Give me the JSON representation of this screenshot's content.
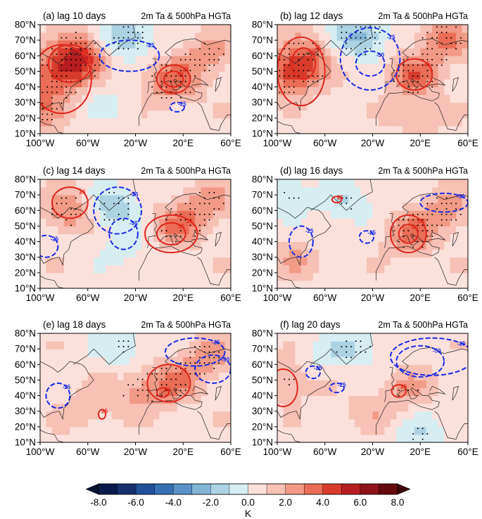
{
  "chart_data": {
    "type": "contour-map",
    "figure_subtitle": "2m Ta & 500hPa HGTa",
    "panels": [
      {
        "label": "(a) lag 10 days",
        "subtitle": "2m Ta & 500hPa HGTa",
        "blobs_k": [
          [
            -88,
            45,
            2.5
          ],
          [
            -75,
            55,
            3.5
          ],
          [
            -60,
            65,
            2.5
          ],
          [
            10,
            43,
            3
          ],
          [
            -30,
            72,
            -3
          ],
          [
            -100,
            25,
            2
          ],
          [
            40,
            60,
            2
          ],
          [
            -40,
            30,
            -0.8
          ]
        ],
        "contours": [
          {
            "sign": "pos",
            "label": "50",
            "cx": -75,
            "cy": 55,
            "rx": 18,
            "ry": 12
          },
          {
            "sign": "pos",
            "label": "25",
            "cx": -82,
            "cy": 45,
            "rx": 25,
            "ry": 22
          },
          {
            "sign": "pos",
            "label": "25",
            "cx": 12,
            "cy": 45,
            "rx": 14,
            "ry": 9
          },
          {
            "sign": "pos",
            "label": "50",
            "cx": 12,
            "cy": 45,
            "rx": 8,
            "ry": 5
          },
          {
            "sign": "neg",
            "label": "-25",
            "cx": -25,
            "cy": 60,
            "rx": 25,
            "ry": 10
          },
          {
            "sign": "neg",
            "label": "-25",
            "cx": 15,
            "cy": 27,
            "rx": 6,
            "ry": 3
          }
        ]
      },
      {
        "label": "(b) lag 12 days",
        "subtitle": "2m Ta & 500hPa HGTa",
        "blobs_k": [
          [
            -88,
            48,
            3.5
          ],
          [
            -75,
            60,
            2.5
          ],
          [
            15,
            48,
            3
          ],
          [
            -30,
            72,
            -3
          ],
          [
            40,
            70,
            2.5
          ],
          [
            20,
            20,
            1
          ]
        ],
        "contours": [
          {
            "sign": "pos",
            "label": "25",
            "cx": -80,
            "cy": 50,
            "rx": 20,
            "ry": 22
          },
          {
            "sign": "pos",
            "label": "50",
            "cx": -78,
            "cy": 55,
            "rx": 10,
            "ry": 10
          },
          {
            "sign": "pos",
            "label": "25",
            "cx": 15,
            "cy": 48,
            "rx": 15,
            "ry": 10
          },
          {
            "sign": "neg",
            "label": "-50",
            "cx": -22,
            "cy": 55,
            "rx": 12,
            "ry": 8
          },
          {
            "sign": "neg",
            "label": "-25",
            "cx": -22,
            "cy": 58,
            "rx": 25,
            "ry": 20
          }
        ]
      },
      {
        "label": "(c) lag 14 days",
        "subtitle": "2m Ta & 500hPa HGTa",
        "blobs_k": [
          [
            -75,
            60,
            2.5
          ],
          [
            15,
            50,
            2.5
          ],
          [
            40,
            65,
            2
          ],
          [
            -40,
            62,
            -2.5
          ],
          [
            -30,
            35,
            -1
          ]
        ],
        "contours": [
          {
            "sign": "pos",
            "label": "25",
            "cx": -75,
            "cy": 65,
            "rx": 15,
            "ry": 10
          },
          {
            "sign": "pos",
            "label": "25",
            "cx": 10,
            "cy": 45,
            "rx": 22,
            "ry": 12
          },
          {
            "sign": "pos",
            "label": "50",
            "cx": 10,
            "cy": 45,
            "rx": 12,
            "ry": 7
          },
          {
            "sign": "neg",
            "label": "-50",
            "cx": -30,
            "cy": 45,
            "rx": 12,
            "ry": 10
          },
          {
            "sign": "neg",
            "label": "-25",
            "cx": -35,
            "cy": 60,
            "rx": 20,
            "ry": 15
          },
          {
            "sign": "neg",
            "label": "-25",
            "cx": -95,
            "cy": 37,
            "rx": 10,
            "ry": 7
          }
        ]
      },
      {
        "label": "(d) lag 16 days",
        "subtitle": "2m Ta & 500hPa HGTa",
        "blobs_k": [
          [
            12,
            45,
            2.5
          ],
          [
            40,
            60,
            2
          ],
          [
            -80,
            30,
            1.5
          ],
          [
            -40,
            65,
            -1.5
          ],
          [
            -90,
            70,
            -1.5
          ],
          [
            -60,
            40,
            -0.8
          ]
        ],
        "contours": [
          {
            "sign": "pos",
            "label": "25",
            "cx": 10,
            "cy": 45,
            "rx": 15,
            "ry": 12
          },
          {
            "sign": "pos",
            "label": "50",
            "cx": 10,
            "cy": 45,
            "rx": 8,
            "ry": 6
          },
          {
            "sign": "pos",
            "label": "25",
            "cx": -50,
            "cy": 67,
            "rx": 4,
            "ry": 2
          },
          {
            "sign": "neg",
            "label": "-25",
            "cx": -80,
            "cy": 40,
            "rx": 10,
            "ry": 10
          },
          {
            "sign": "neg",
            "label": "-50",
            "cx": 40,
            "cy": 65,
            "rx": 20,
            "ry": 6
          },
          {
            "sign": "neg",
            "label": "-25",
            "cx": -25,
            "cy": 43,
            "rx": 6,
            "ry": 4
          }
        ]
      },
      {
        "label": "(e) lag 18 days",
        "subtitle": "2m Ta & 500hPa HGTa",
        "blobs_k": [
          [
            10,
            48,
            2.5
          ],
          [
            -20,
            42,
            1.5
          ],
          [
            40,
            65,
            2
          ],
          [
            -30,
            72,
            -1.5
          ],
          [
            -60,
            30,
            1
          ]
        ],
        "contours": [
          {
            "sign": "pos",
            "label": "25",
            "cx": 8,
            "cy": 48,
            "rx": 18,
            "ry": 12
          },
          {
            "sign": "pos",
            "label": "25",
            "cx": 3,
            "cy": 42,
            "rx": 5,
            "ry": 3
          },
          {
            "sign": "pos",
            "label": "25",
            "cx": -48,
            "cy": 28,
            "rx": 3,
            "ry": 3
          },
          {
            "sign": "neg",
            "label": "-25",
            "cx": -85,
            "cy": 40,
            "rx": 10,
            "ry": 8
          },
          {
            "sign": "neg",
            "label": "-50",
            "cx": 45,
            "cy": 57,
            "rx": 15,
            "ry": 9
          },
          {
            "sign": "neg",
            "label": "-25",
            "cx": 30,
            "cy": 68,
            "rx": 25,
            "ry": 9
          }
        ]
      },
      {
        "label": "(f) lag 20 days",
        "subtitle": "2m Ta & 500hPa HGTa",
        "blobs_k": [
          [
            -90,
            50,
            1.5
          ],
          [
            10,
            45,
            1.5
          ],
          [
            -20,
            30,
            1
          ],
          [
            20,
            15,
            -1.5
          ],
          [
            -60,
            65,
            -1
          ],
          [
            -30,
            72,
            -1.5
          ]
        ],
        "contours": [
          {
            "sign": "pos",
            "label": "",
            "cx": -95,
            "cy": 45,
            "rx": 12,
            "ry": 12
          },
          {
            "sign": "pos",
            "label": "25",
            "cx": 2,
            "cy": 43,
            "rx": 6,
            "ry": 4
          },
          {
            "sign": "neg",
            "label": "-25",
            "cx": -70,
            "cy": 55,
            "rx": 6,
            "ry": 4
          },
          {
            "sign": "neg",
            "label": "-25",
            "cx": -50,
            "cy": 45,
            "rx": 6,
            "ry": 3
          },
          {
            "sign": "neg",
            "label": "-50",
            "cx": 20,
            "cy": 62,
            "rx": 20,
            "ry": 10
          },
          {
            "sign": "neg",
            "label": "-25",
            "cx": 30,
            "cy": 65,
            "rx": 35,
            "ry": 12
          }
        ]
      }
    ],
    "x_ticks": [
      "100°W",
      "60°W",
      "20°W",
      "20°E",
      "60°E"
    ],
    "x_tick_values": [
      -100,
      -60,
      -20,
      20,
      60
    ],
    "y_ticks": [
      "80°N",
      "70°N",
      "60°N",
      "50°N",
      "40°N",
      "30°N",
      "20°N",
      "10°N"
    ],
    "y_tick_values": [
      80,
      70,
      60,
      50,
      40,
      30,
      20,
      10
    ],
    "lon_range": [
      -100,
      60
    ],
    "lat_range": [
      10,
      80
    ],
    "colorbar": {
      "ticks": [
        "-8.0",
        "-6.0",
        "-4.0",
        "-2.0",
        "0.0",
        "2.0",
        "4.0",
        "6.0",
        "8.0"
      ],
      "unit": "K",
      "levels": [
        -8,
        -7,
        -6,
        -5,
        -4,
        -3,
        -2,
        -1,
        0,
        1,
        2,
        3,
        4,
        5,
        6,
        7,
        8
      ],
      "colors": [
        "#0b1a4d",
        "#16306e",
        "#22519b",
        "#3470b3",
        "#5a92c9",
        "#83b5d8",
        "#acd3e4",
        "#d6eef2",
        "#fbe0dc",
        "#f7c1b5",
        "#f29a86",
        "#ea6d57",
        "#d83a2c",
        "#b81e21",
        "#8e1217",
        "#650a0e"
      ],
      "under_color": "#06102f",
      "over_color": "#3d0409"
    },
    "contour_colors": {
      "pos": "#e0261c",
      "neg": "#1a2be6"
    }
  }
}
